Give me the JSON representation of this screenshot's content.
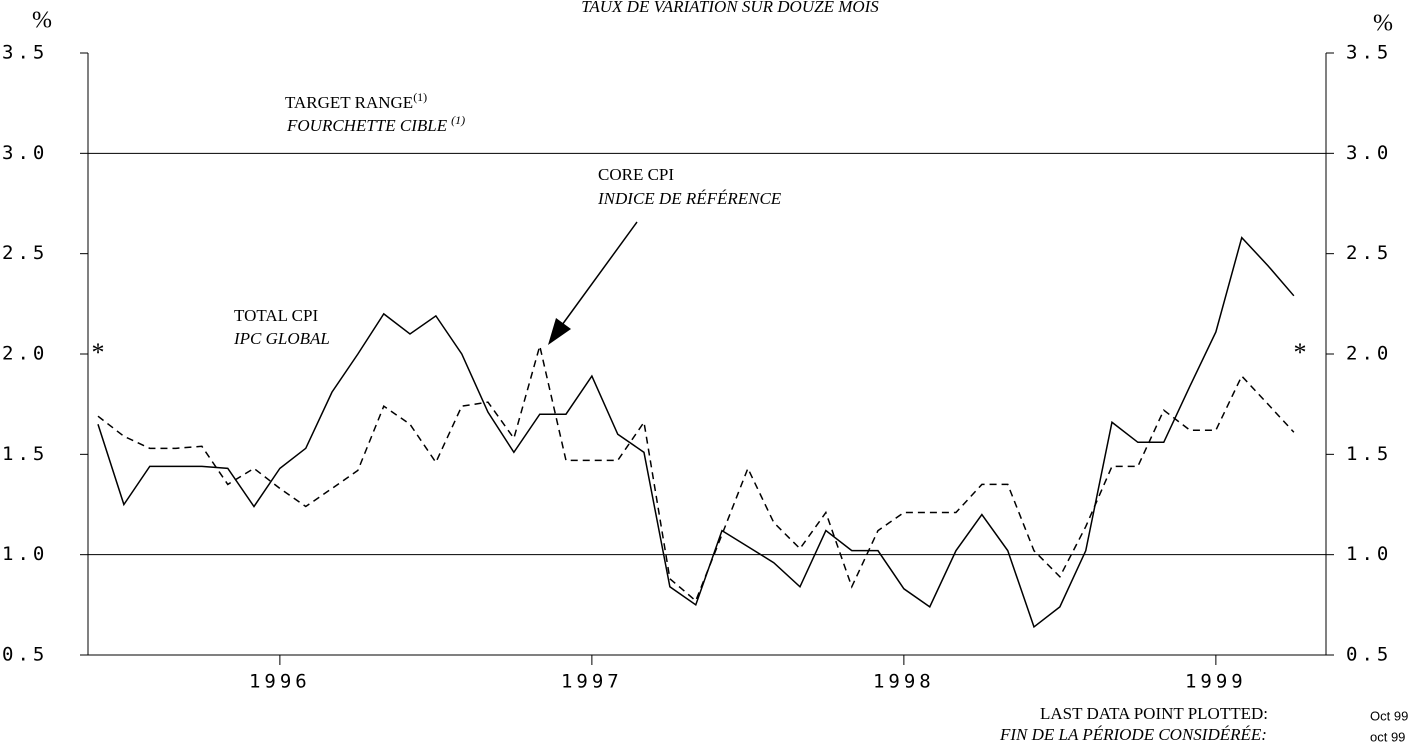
{
  "chart_data": {
    "type": "line",
    "title": "TAUX DE VARIATION SUR DOUZE MOIS",
    "y_unit_left": "%",
    "y_unit_right": "%",
    "x": [
      1995.917,
      1996.0,
      1996.083,
      1996.167,
      1996.25,
      1996.333,
      1996.417,
      1996.5,
      1996.583,
      1996.667,
      1996.75,
      1996.833,
      1996.917,
      1997.0,
      1997.083,
      1997.167,
      1997.25,
      1997.333,
      1997.417,
      1997.5,
      1997.583,
      1997.667,
      1997.75,
      1997.833,
      1997.917,
      1998.0,
      1998.083,
      1998.167,
      1998.25,
      1998.333,
      1998.417,
      1998.5,
      1998.583,
      1998.667,
      1998.75,
      1998.833,
      1998.917,
      1999.0,
      1999.083,
      1999.167,
      1999.25,
      1999.333,
      1999.417,
      1999.5,
      1999.583,
      1999.667,
      1999.75
    ],
    "series": [
      {
        "name": "TOTAL CPI",
        "name_fr": "IPC GLOBAL",
        "color": "#000000",
        "dash": "solid",
        "values": [
          1.65,
          1.25,
          1.44,
          1.44,
          1.44,
          1.43,
          1.24,
          1.43,
          1.53,
          1.81,
          2.0,
          2.2,
          2.1,
          2.19,
          2.0,
          1.71,
          1.51,
          1.7,
          1.7,
          1.89,
          1.6,
          1.51,
          0.84,
          0.75,
          1.12,
          1.04,
          0.96,
          0.84,
          1.12,
          1.02,
          1.02,
          0.83,
          0.74,
          1.02,
          1.2,
          1.02,
          0.64,
          0.74,
          1.02,
          1.66,
          1.56,
          1.56,
          1.84,
          2.11,
          2.58,
          2.44,
          2.29
        ]
      },
      {
        "name": "CORE CPI",
        "name_fr": "INDICE DE RÉFÉRENCE",
        "color": "#000000",
        "dash": "dashed",
        "values": [
          1.69,
          1.59,
          1.53,
          1.53,
          1.54,
          1.35,
          1.43,
          1.33,
          1.24,
          1.33,
          1.42,
          1.74,
          1.65,
          1.46,
          1.74,
          1.76,
          1.58,
          2.04,
          1.47,
          1.47,
          1.47,
          1.66,
          0.88,
          0.77,
          1.1,
          1.43,
          1.16,
          1.03,
          1.21,
          0.84,
          1.12,
          1.21,
          1.21,
          1.21,
          1.35,
          1.35,
          1.02,
          0.89,
          1.14,
          1.44,
          1.44,
          1.72,
          1.62,
          1.62,
          1.89,
          1.75,
          1.61
        ]
      }
    ],
    "target_range": {
      "label": "TARGET RANGE",
      "label_fr": "FOURCHETTE CIBLE",
      "note": "(1)",
      "values": [
        1,
        3
      ]
    },
    "marker": "*",
    "xlim": [
      1995.885,
      1999.853
    ],
    "ylim": [
      0.5,
      3.5
    ],
    "xticks": [
      {
        "value": 1996.5,
        "label": "1996"
      },
      {
        "value": 1997.5,
        "label": "1997"
      },
      {
        "value": 1998.5,
        "label": "1998"
      },
      {
        "value": 1999.5,
        "label": "1999"
      }
    ],
    "yticks": [
      {
        "value": 0.5,
        "label": "0.5"
      },
      {
        "value": 1,
        "label": "1.0"
      },
      {
        "value": 1.5,
        "label": "1.5"
      },
      {
        "value": 2,
        "label": "2.0"
      },
      {
        "value": 2.5,
        "label": "2.5"
      },
      {
        "value": 3,
        "label": "3.0"
      },
      {
        "value": 3.5,
        "label": "3.5"
      }
    ],
    "grid": false,
    "footer": {
      "label": "LAST DATA POINT PLOTTED:",
      "value": "Oct 99",
      "label_fr": "FIN DE LA PÉRIODE CONSIDÉRÉE:",
      "value_fr": "oct 99"
    }
  }
}
